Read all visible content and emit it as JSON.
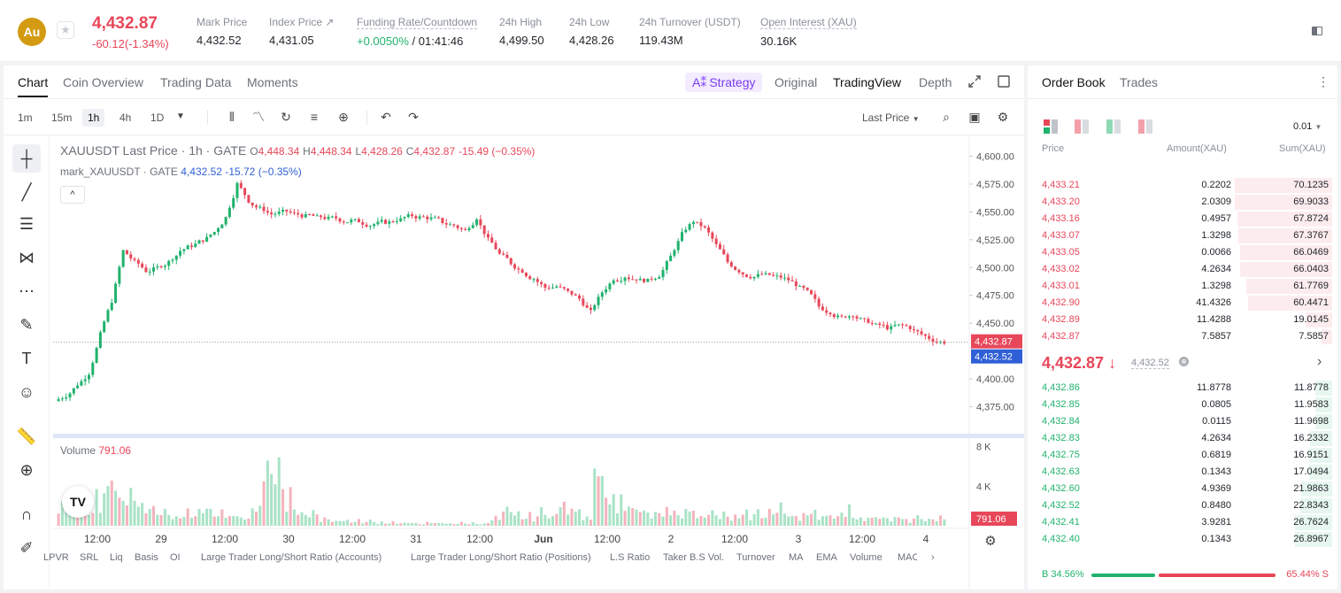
{
  "header": {
    "coin_symbol": "Au",
    "last_price": "4,432.87",
    "change": "-60.12(-1.34%)",
    "stats": [
      {
        "label": "Mark Price",
        "value": "4,432.52"
      },
      {
        "label": "Index Price ↗",
        "value": "4,431.05"
      },
      {
        "label": "Funding Rate/Countdown",
        "value_green": "+0.0050%",
        "value": " / 01:41:46"
      },
      {
        "label": "24h High",
        "value": "4,499.50"
      },
      {
        "label": "24h Low",
        "value": "4,428.26"
      },
      {
        "label": "24h Turnover (USDT)",
        "value": "119.43M"
      },
      {
        "label": "Open Interest (XAU)",
        "value": "30.16K"
      }
    ]
  },
  "chart_tabs": [
    "Chart",
    "Coin Overview",
    "Trading Data",
    "Moments"
  ],
  "view_tabs": {
    "strategy": "Strategy",
    "original": "Original",
    "tradingview": "TradingView",
    "depth": "Depth"
  },
  "timeframes": [
    "1m",
    "15m",
    "1h",
    "4h",
    "1D"
  ],
  "price_type": "Last Price",
  "legend": {
    "symbol": "XAUUSDT Last Price · 1h · GATE",
    "o": "4,448.34",
    "h": "4,448.34",
    "l": "4,428.26",
    "c": "4,432.87",
    "chg": "-15.49 (−0.35%)",
    "mark_label": "mark_XAUUSDT · GATE",
    "mark_value": "4,432.52",
    "mark_chg": "-15.72 (−0.35%)"
  },
  "volume": {
    "label": "Volume",
    "value": "791.06"
  },
  "bottom_indicators": [
    "LPVR",
    "SRL",
    "Liq",
    "Basis",
    "OI",
    "Large Trader Long/Short Ratio (Accounts)",
    "Large Trader Long/Short Ratio (Positions)",
    "L.S Ratio",
    "Taker B.S Vol.",
    "Turnover",
    "MA",
    "EMA",
    "Volume",
    "MACD"
  ],
  "chart_data": {
    "type": "candlestick",
    "y_ticks": [
      "4,600.00",
      "4,575.00",
      "4,550.00",
      "4,525.00",
      "4,500.00",
      "4,475.00",
      "4,450.00",
      "4,400.00",
      "4,375.00"
    ],
    "ylim": [
      4365,
      4610
    ],
    "x_ticks": [
      "12:00",
      "29",
      "12:00",
      "30",
      "12:00",
      "31",
      "12:00",
      "Jun",
      "12:00",
      "2",
      "12:00",
      "3",
      "12:00",
      "4"
    ],
    "last_price_label": "4,432.87",
    "mark_price_label": "4,432.52",
    "volume_ticks": [
      "8 K",
      "4 K"
    ],
    "volume_label": "791.06",
    "close_path": [
      4385,
      4395,
      4405,
      4440,
      4470,
      4515,
      4505,
      4497,
      4500,
      4505,
      4515,
      4520,
      4525,
      4532,
      4545,
      4575,
      4560,
      4553,
      4548,
      4550,
      4548,
      4546,
      4545,
      4544,
      4543,
      4542,
      4540,
      4539,
      4541,
      4543,
      4546,
      4545,
      4544,
      4541,
      4538,
      4533,
      4545,
      4525,
      4512,
      4504,
      4497,
      4490,
      4482,
      4483,
      4478,
      4472,
      4460,
      4478,
      4490,
      4492,
      4490,
      4488,
      4493,
      4510,
      4530,
      4542,
      4535,
      4520,
      4505,
      4497,
      4492,
      4494,
      4492,
      4490,
      4485,
      4478,
      4465,
      4460,
      4455,
      4458,
      4452,
      4448,
      4446,
      4448,
      4446,
      4440,
      4435,
      4433
    ],
    "volume_path": [
      1800,
      2500,
      2200,
      3000,
      4800,
      4200,
      3500,
      2800,
      2000,
      1500,
      1200,
      1600,
      2200,
      1800,
      1400,
      1000,
      900,
      2200,
      5600,
      6800,
      3000,
      1800,
      1200,
      900,
      700,
      600,
      500,
      500,
      400,
      400,
      300,
      300,
      300,
      300,
      300,
      300,
      300,
      300,
      800,
      1500,
      1200,
      1000,
      1400,
      1600,
      2200,
      1800,
      1200,
      8200,
      3500,
      2800,
      2000,
      1500,
      1300,
      1400,
      1700,
      1800,
      1600,
      1300,
      1100,
      900,
      1200,
      1400,
      1600,
      1800,
      1500,
      1200,
      1300,
      1400,
      1500,
      1600,
      1100,
      1000,
      800,
      900,
      700,
      800,
      900,
      791
    ]
  },
  "order_book": {
    "tabs": [
      "Order Book",
      "Trades"
    ],
    "precision": "0.01",
    "columns": [
      "Price",
      "Amount(XAU)",
      "Sum(XAU)"
    ],
    "asks": [
      {
        "p": "4,433.21",
        "a": "0.2202",
        "s": "70.1235",
        "d": 0.92
      },
      {
        "p": "4,433.20",
        "a": "2.0309",
        "s": "69.9033",
        "d": 0.92
      },
      {
        "p": "4,433.16",
        "a": "0.4957",
        "s": "67.8724",
        "d": 0.89
      },
      {
        "p": "4,433.07",
        "a": "1.3298",
        "s": "67.3767",
        "d": 0.88
      },
      {
        "p": "4,433.05",
        "a": "0.0066",
        "s": "66.0469",
        "d": 0.87
      },
      {
        "p": "4,433.02",
        "a": "4.2634",
        "s": "66.0403",
        "d": 0.87
      },
      {
        "p": "4,433.01",
        "a": "1.3298",
        "s": "61.7769",
        "d": 0.81
      },
      {
        "p": "4,432.90",
        "a": "41.4326",
        "s": "60.4471",
        "d": 0.79
      },
      {
        "p": "4,432.89",
        "a": "11.4288",
        "s": "19.0145",
        "d": 0.25
      },
      {
        "p": "4,432.87",
        "a": "7.5857",
        "s": "7.5857",
        "d": 0.1
      }
    ],
    "mid_price": "4,432.87 ↓",
    "mid_mark": "4,432.52",
    "bids": [
      {
        "p": "4,432.86",
        "a": "11.8778",
        "s": "11.8778",
        "d": 0.16
      },
      {
        "p": "4,432.85",
        "a": "0.0805",
        "s": "11.9583",
        "d": 0.16
      },
      {
        "p": "4,432.84",
        "a": "0.0115",
        "s": "11.9698",
        "d": 0.16
      },
      {
        "p": "4,432.83",
        "a": "4.2634",
        "s": "16.2332",
        "d": 0.21
      },
      {
        "p": "4,432.75",
        "a": "0.6819",
        "s": "16.9151",
        "d": 0.22
      },
      {
        "p": "4,432.63",
        "a": "0.1343",
        "s": "17.0494",
        "d": 0.22
      },
      {
        "p": "4,432.60",
        "a": "4.9369",
        "s": "21.9863",
        "d": 0.29
      },
      {
        "p": "4,432.52",
        "a": "0.8480",
        "s": "22.8343",
        "d": 0.3
      },
      {
        "p": "4,432.41",
        "a": "3.9281",
        "s": "26.7624",
        "d": 0.35
      },
      {
        "p": "4,432.40",
        "a": "0.1343",
        "s": "26.8967",
        "d": 0.35
      }
    ],
    "buy_ratio": "B 34.56%",
    "sell_ratio": "65.44% S",
    "buy_fraction": 0.3456
  },
  "colors": {
    "up": "#20b26c",
    "down": "#e8475a",
    "mark": "#2f5fd6",
    "accent": "#7a3cf0"
  }
}
